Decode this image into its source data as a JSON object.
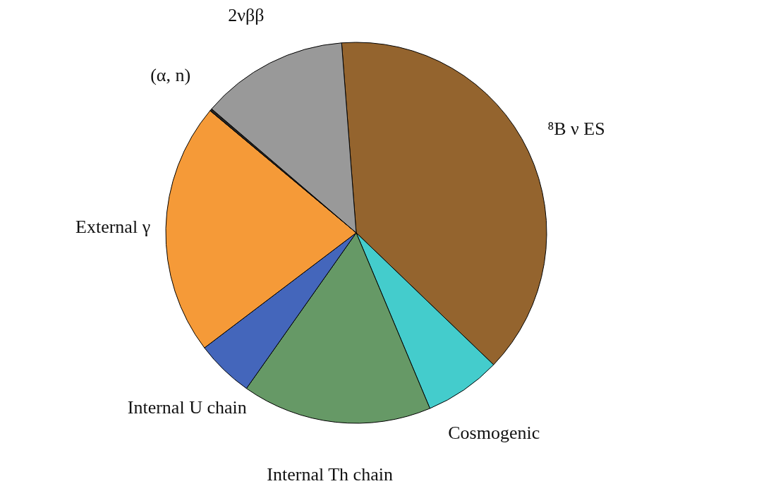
{
  "chart_data": {
    "type": "pie",
    "categories": [
      "⁸B ν ES",
      "Cosmogenic",
      "Internal Th chain",
      "Internal U chain",
      "External γ",
      "(α, n)",
      "2νββ"
    ],
    "values": [
      38.4,
      6.5,
      16.1,
      4.9,
      21.4,
      0.2,
      12.5
    ],
    "colors": [
      "#94642e",
      "#44cccc",
      "#669966",
      "#4466bb",
      "#f59a38",
      "#222222",
      "#999999"
    ],
    "legend": false
  }
}
